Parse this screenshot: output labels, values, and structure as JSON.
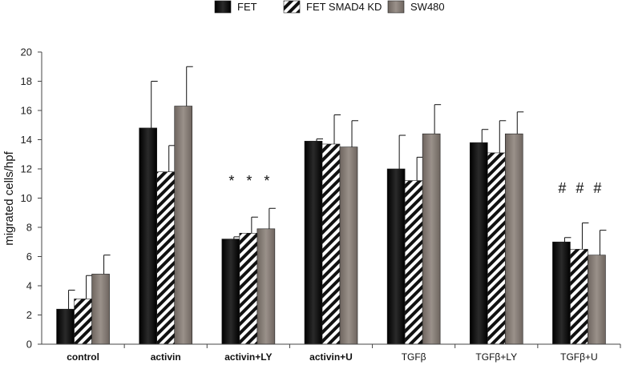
{
  "chart_data": {
    "type": "bar",
    "title": "",
    "xlabel": "",
    "ylabel": "migrated cells/hpf",
    "ylim": [
      0,
      20
    ],
    "yticks": [
      0,
      2,
      4,
      6,
      8,
      10,
      12,
      14,
      16,
      18,
      20
    ],
    "legend_position": "top-center",
    "categories": [
      "control",
      "activin",
      "activin+LY",
      "activin+U",
      "TGFβ",
      "TGFβ+LY",
      "TGFβ+U"
    ],
    "series": [
      {
        "name": "FET",
        "color": "#111111",
        "pattern": "solid",
        "values": [
          2.4,
          14.8,
          7.2,
          13.9,
          12.0,
          13.8,
          7.0
        ],
        "errors": [
          1.3,
          3.2,
          0.15,
          0.15,
          2.3,
          0.9,
          0.3
        ]
      },
      {
        "name": "FET SMAD4 KD",
        "color": "#111111",
        "pattern": "hatch",
        "values": [
          3.1,
          11.8,
          7.6,
          13.7,
          11.2,
          13.1,
          6.5
        ],
        "errors": [
          1.6,
          1.8,
          1.1,
          2.0,
          1.6,
          2.2,
          1.8
        ]
      },
      {
        "name": "SW480",
        "color": "#857a72",
        "pattern": "solid",
        "values": [
          4.8,
          16.3,
          7.9,
          13.5,
          14.4,
          14.4,
          6.1
        ],
        "errors": [
          1.3,
          2.7,
          1.4,
          1.8,
          2.0,
          1.5,
          1.7
        ]
      }
    ],
    "annotations": [
      {
        "category": "activin+LY",
        "symbol": "*",
        "count": 3
      },
      {
        "category": "TGFβ+U",
        "symbol": "#",
        "count": 3
      }
    ]
  }
}
